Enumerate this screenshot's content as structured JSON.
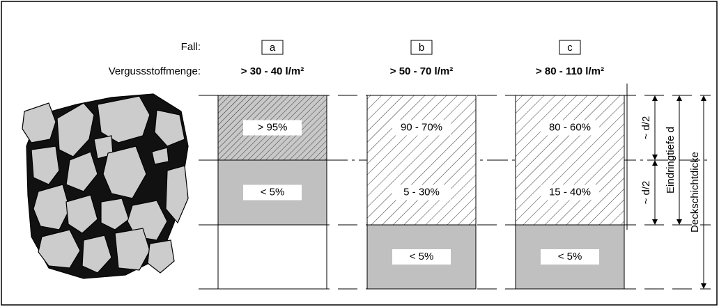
{
  "header": {
    "case_label": "Fall:",
    "amount_label": "Vergussstoffmenge:"
  },
  "columns": [
    {
      "case": "a",
      "amount": "> 30 - 40 l/m²",
      "segments": [
        "> 95%",
        "< 5%"
      ]
    },
    {
      "case": "b",
      "amount": "> 50 - 70 l/m²",
      "segments": [
        "90 - 70%",
        "5 - 30%",
        "< 5%"
      ]
    },
    {
      "case": "c",
      "amount": "> 80 - 110 l/m²",
      "segments": [
        "80 - 60%",
        "15 - 40%",
        "< 5%"
      ]
    }
  ],
  "dimensions": {
    "half_upper": "~ d/2",
    "half_lower": "~ d/2",
    "penetration": "Eindringtiefe d",
    "layer": "Deckschichtdicke"
  }
}
